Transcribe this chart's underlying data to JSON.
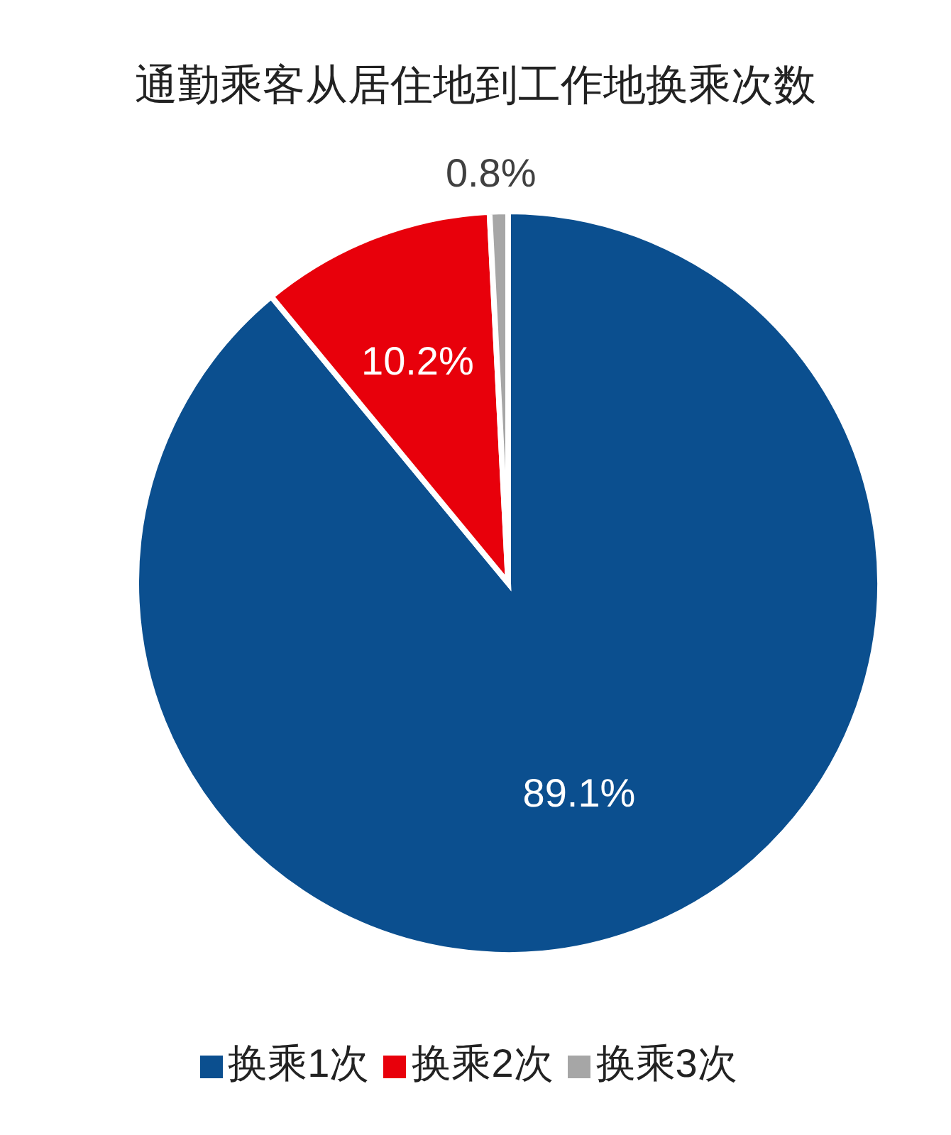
{
  "chart_data": {
    "type": "pie",
    "title": "通勤乘客从居住地到工作地换乘次数",
    "categories": [
      "换乘1次",
      "换乘2次",
      "换乘3次"
    ],
    "values": [
      89.1,
      10.2,
      0.8
    ],
    "value_labels": [
      "89.1%",
      "10.2%",
      "0.8%"
    ],
    "colors": [
      "#0b4f8f",
      "#e8000b",
      "#a6a6a6"
    ],
    "legend": "bottom"
  }
}
